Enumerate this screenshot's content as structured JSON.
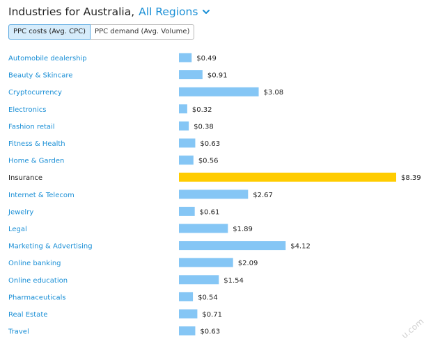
{
  "header": {
    "title": "Industries for Australia,",
    "region": "All Regions"
  },
  "tabs": [
    {
      "label": "PPC costs (Avg. CPC)",
      "active": true
    },
    {
      "label": "PPC demand (Avg. Volume)",
      "active": false
    }
  ],
  "colors": {
    "bar": "#85c6f5",
    "highlight": "#ffcc00",
    "link": "#1a8fd6"
  },
  "chart_data": {
    "type": "bar",
    "orientation": "horizontal",
    "categories": [
      "Automobile dealership",
      "Beauty & Skincare",
      "Cryptocurrency",
      "Electronics",
      "Fashion retail",
      "Fitness & Health",
      "Home & Garden",
      "Insurance",
      "Internet & Telecom",
      "Jewelry",
      "Legal",
      "Marketing & Advertising",
      "Online banking",
      "Online education",
      "Pharmaceuticals",
      "Real Estate",
      "Travel"
    ],
    "values": [
      0.49,
      0.91,
      3.08,
      0.32,
      0.38,
      0.63,
      0.56,
      8.39,
      2.67,
      0.61,
      1.89,
      4.12,
      2.09,
      1.54,
      0.54,
      0.71,
      0.63
    ],
    "value_labels": [
      "$0.49",
      "$0.91",
      "$3.08",
      "$0.32",
      "$0.38",
      "$0.63",
      "$0.56",
      "$8.39",
      "$2.67",
      "$0.61",
      "$1.89",
      "$4.12",
      "$2.09",
      "$1.54",
      "$0.54",
      "$0.71",
      "$0.63"
    ],
    "highlight_category": "Insurance",
    "xlim": [
      0,
      8.39
    ]
  },
  "watermark": "u.com"
}
